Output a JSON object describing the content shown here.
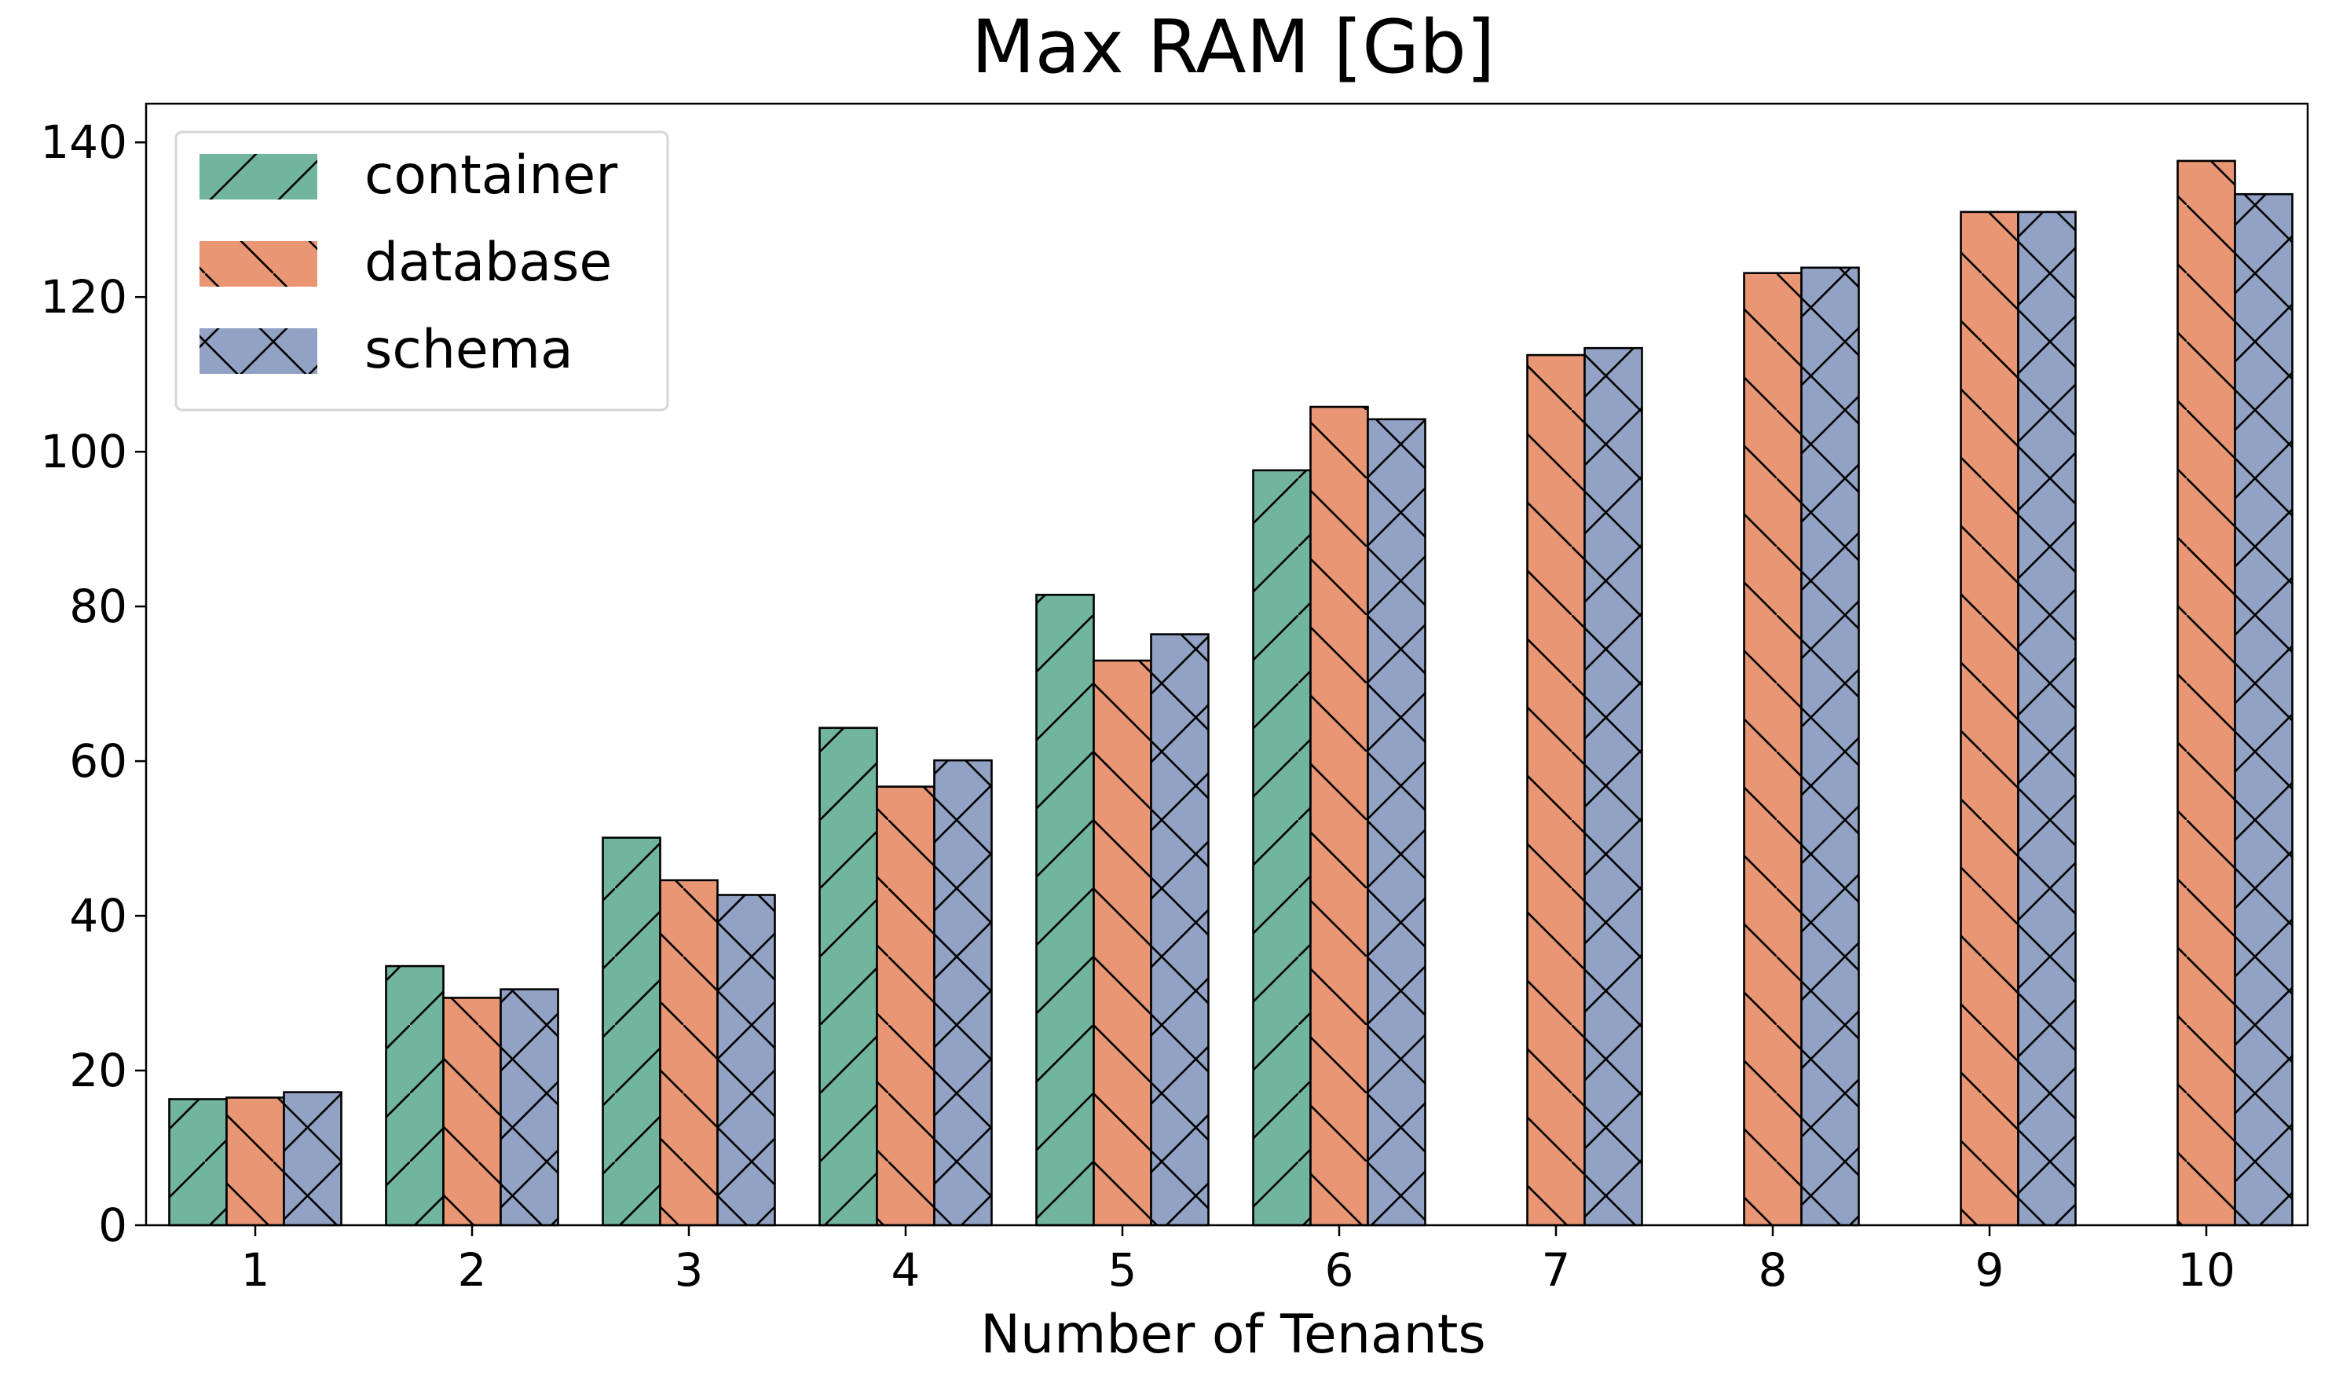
{
  "chart_data": {
    "type": "bar",
    "title": "Max RAM [Gb]",
    "xlabel": "Number of Tenants",
    "ylabel": "",
    "categories": [
      "1",
      "2",
      "3",
      "4",
      "5",
      "6",
      "7",
      "8",
      "9",
      "10"
    ],
    "ylim": [
      0,
      145
    ],
    "yticks": [
      "0",
      "20",
      "40",
      "60",
      "80",
      "100",
      "120",
      "140"
    ],
    "grid": false,
    "legend_position": "top-left",
    "series": [
      {
        "name": "container",
        "color": "#72b59e",
        "hatch": "forward-diagonal",
        "values": [
          16.3,
          33.5,
          50.1,
          64.3,
          81.5,
          97.6,
          null,
          null,
          null,
          null
        ]
      },
      {
        "name": "database",
        "color": "#e89673",
        "hatch": "back-diagonal",
        "values": [
          16.5,
          29.4,
          44.6,
          56.7,
          73.0,
          105.8,
          112.5,
          123.1,
          131.0,
          137.6
        ]
      },
      {
        "name": "schema",
        "color": "#92a2c4",
        "hatch": "cross",
        "values": [
          17.2,
          30.5,
          42.7,
          60.1,
          76.4,
          104.2,
          113.4,
          123.8,
          131.0,
          133.3
        ]
      }
    ]
  }
}
